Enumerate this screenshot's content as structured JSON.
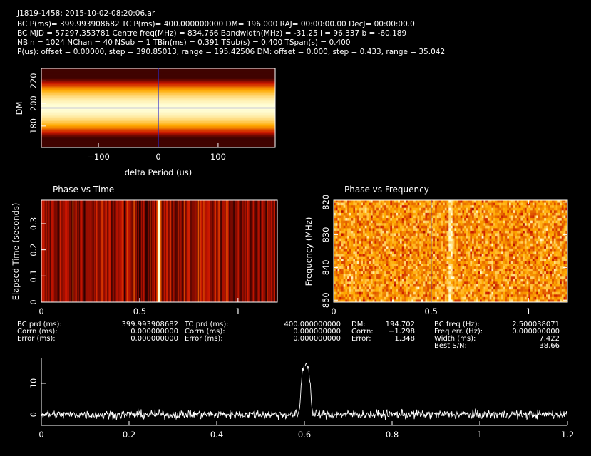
{
  "header": {
    "title": "J1819-1458: 2015-10-02-08:20:06.ar",
    "line1": "BC P(ms)= 399.993908682 TC P(ms)= 400.000000000 DM= 196.000 RAJ= 00:00:00.00 DecJ= 00:00:00.0",
    "line2": "BC MJD = 57297.353781 Centre freq(MHz) = 834.766 Bandwidth(MHz) = -31.25 l = 96.337 b = -60.189",
    "line3": "NBin = 1024 NChan = 40 NSub = 1 TBin(ms) = 0.391 TSub(s) = 0.400 TSpan(s) = 0.400",
    "line4": "P(us): offset = 0.00000, step = 390.85013, range = 195.42506 DM: offset = 0.000, step = 0.433, range = 35.042"
  },
  "colors": {
    "background": "#000000",
    "foreground": "#ffffff",
    "marker": "#2a2acc",
    "heat_low": "#280000",
    "heat_mid": "#c84a00",
    "heat_high": "#ffffd8"
  },
  "chart_data": [
    {
      "id": "dm-vs-period",
      "type": "heatmap",
      "title": "",
      "xlabel": "delta Period (us)",
      "ylabel": "DM",
      "xlim": [
        -195.42506,
        195.42506
      ],
      "ylim": [
        161,
        231
      ],
      "xticks": [
        -100,
        0,
        100
      ],
      "xticklabels": [
        "−100",
        "0",
        "100"
      ],
      "yticks": [
        180,
        200,
        220
      ],
      "yticklabels": [
        "180",
        "200",
        "220"
      ],
      "marker": {
        "x": 0,
        "y": 196
      },
      "description_peak_dm": 196
    },
    {
      "id": "phase-vs-time",
      "type": "heatmap",
      "title": "Phase vs Time",
      "xlabel": "",
      "ylabel": "Elapsed Time (seconds)",
      "xlim": [
        0,
        1.2
      ],
      "ylim": [
        0,
        0.39
      ],
      "xticks": [
        0,
        0.5,
        1
      ],
      "xticklabels": [
        "0",
        "0.5",
        "1"
      ],
      "yticks": [
        0,
        0.1,
        0.2,
        0.3
      ],
      "yticklabels": [
        "0",
        "0.1",
        "0.2",
        "0.3"
      ],
      "pulse_phase": 0.6
    },
    {
      "id": "phase-vs-frequency",
      "type": "heatmap",
      "title": "Phase vs Frequency",
      "xlabel": "",
      "ylabel": "Frequency (MHz)",
      "xlim": [
        0,
        1.2
      ],
      "ylim": [
        850.6,
        819.4
      ],
      "xticks": [
        0,
        0.5,
        1
      ],
      "xticklabels": [
        "0",
        "0.5",
        "1"
      ],
      "yticks": [
        820,
        830,
        840,
        850
      ],
      "yticklabels": [
        "820",
        "830",
        "840",
        "850"
      ],
      "marker": {
        "x": 0.5
      },
      "pulse_phase": 0.6
    },
    {
      "id": "profile",
      "type": "line",
      "title": "",
      "xlabel": "",
      "ylabel": "",
      "xlim": [
        0,
        1.2
      ],
      "ylim": [
        -3.5,
        18
      ],
      "xticks": [
        0,
        0.2,
        0.4,
        0.6,
        0.8,
        1,
        1.2
      ],
      "xticklabels": [
        "0",
        "0.2",
        "0.4",
        "0.6",
        "0.8",
        "1",
        "1.2"
      ],
      "yticks": [
        0,
        10
      ],
      "yticklabels": [
        "0",
        "10"
      ],
      "baseline": 0,
      "noise_amplitude": 1.0,
      "pulse": {
        "center": 0.603,
        "width": 0.012,
        "peak": 16
      }
    }
  ],
  "info": {
    "col1": [
      {
        "label": "BC prd (ms):",
        "value": "399.993908682"
      },
      {
        "label": "Corrn (ms):",
        "value": "0.000000000"
      },
      {
        "label": "Error (ms):",
        "value": "0.000000000"
      }
    ],
    "col2": [
      {
        "label": "TC prd (ms):",
        "value": "400.000000000"
      },
      {
        "label": "Corrn (ms):",
        "value": "0.000000000"
      },
      {
        "label": "Error (ms):",
        "value": "0.000000000"
      }
    ],
    "col3": [
      {
        "label": "DM:",
        "value": "194.702"
      },
      {
        "label": "Corrn:",
        "value": "−1.298"
      },
      {
        "label": "Error:",
        "value": "1.348"
      }
    ],
    "col4": [
      {
        "label": "BC freq (Hz):",
        "value": "2.500038071"
      },
      {
        "label": "Freq err. (Hz):",
        "value": "0.000000000"
      },
      {
        "label": "Width (ms):",
        "value": "7.422"
      },
      {
        "label": "Best S/N:",
        "value": "38.66"
      }
    ]
  }
}
